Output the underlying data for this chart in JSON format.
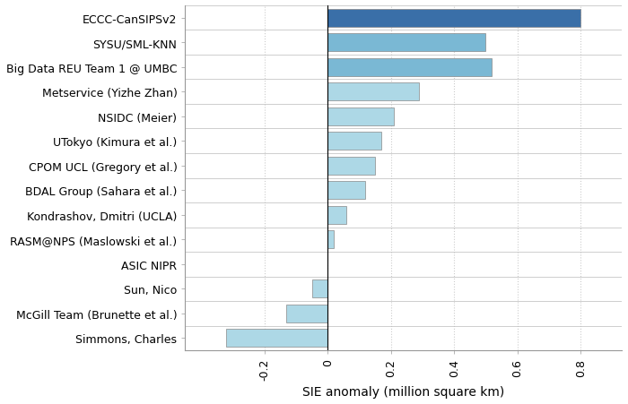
{
  "categories": [
    "Simmons, Charles",
    "McGill Team (Brunette et al.)",
    "Sun, Nico",
    "ASIC NIPR",
    "RASM@NPS (Maslowski et al.)",
    "Kondrashov, Dmitri (UCLA)",
    "BDAL Group (Sahara et al.)",
    "CPOM UCL (Gregory et al.)",
    "UTokyo (Kimura et al.)",
    "NSIDC (Meier)",
    "Metservice (Yizhe Zhan)",
    "Big Data REU Team 1 @ UMBC",
    "SYSU/SML-KNN",
    "ECCC-CanSIPSv2"
  ],
  "values": [
    -0.32,
    -0.13,
    -0.05,
    0.0,
    0.02,
    0.06,
    0.12,
    0.15,
    0.17,
    0.21,
    0.29,
    0.52,
    0.5,
    0.8
  ],
  "bar_colors": [
    "#add8e6",
    "#add8e6",
    "#add8e6",
    "#add8e6",
    "#add8e6",
    "#add8e6",
    "#add8e6",
    "#add8e6",
    "#add8e6",
    "#add8e6",
    "#add8e6",
    "#7ab8d4",
    "#7ab8d4",
    "#3a6fa8"
  ],
  "xlabel": "SIE anomaly (million square km)",
  "xlim": [
    -0.45,
    0.93
  ],
  "xticks": [
    -0.2,
    0.0,
    0.2,
    0.4,
    0.6,
    0.8
  ],
  "xtick_labels": [
    "-0.2",
    "0",
    "0.2",
    "0.4",
    "0.6",
    "0.8"
  ],
  "background_color": "#ffffff",
  "plot_bg_color": "#ffffff",
  "grid_color": "#cccccc",
  "bar_height": 0.72,
  "xlabel_fontsize": 10,
  "tick_fontsize": 9,
  "label_fontsize": 9,
  "spine_color": "#999999"
}
